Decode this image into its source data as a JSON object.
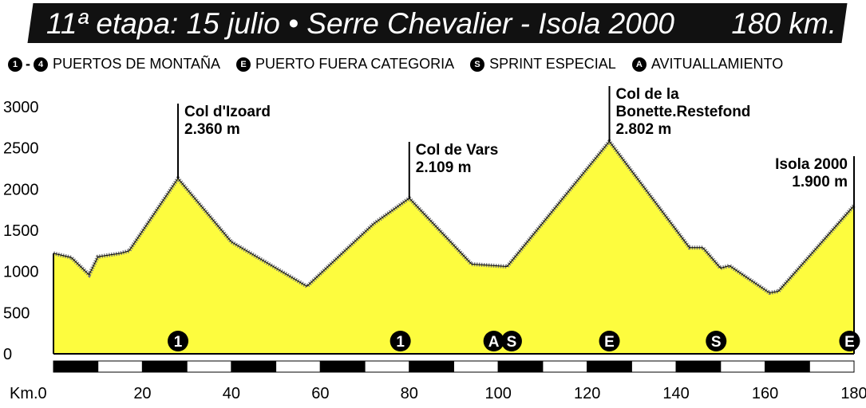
{
  "banner": {
    "stage": "11ª etapa: 15 julio • Serre Chevalier - Isola 2000",
    "distance": "180 km."
  },
  "legend": [
    {
      "icon": "1",
      "icon2": "4",
      "label": "PUERTOS DE MONTAÑA"
    },
    {
      "icon": "E",
      "label": "PUERTO FUERA CATEGORIA"
    },
    {
      "icon": "S",
      "label": "SPRINT ESPECIAL"
    },
    {
      "icon": "A",
      "label": "AVITUALLAMIENTO"
    }
  ],
  "colors": {
    "fill": "#fdfc3e",
    "stroke": "#7a7a7a",
    "ink": "#000000"
  },
  "chart_data": {
    "type": "area",
    "xlabel": "Km.0",
    "xticks": [
      20,
      40,
      60,
      80,
      100,
      120,
      140,
      160,
      180
    ],
    "xlim": [
      0,
      180
    ],
    "yticks": [
      0,
      500,
      1000,
      1500,
      2000,
      2500,
      3000
    ],
    "ylim": [
      0,
      3000
    ],
    "profile": [
      [
        0,
        1220
      ],
      [
        4,
        1170
      ],
      [
        8,
        960
      ],
      [
        10,
        1180
      ],
      [
        15,
        1220
      ],
      [
        17,
        1250
      ],
      [
        28,
        2130
      ],
      [
        40,
        1360
      ],
      [
        57,
        820
      ],
      [
        72,
        1580
      ],
      [
        80,
        1890
      ],
      [
        94,
        1090
      ],
      [
        102,
        1060
      ],
      [
        125,
        2580
      ],
      [
        143,
        1290
      ],
      [
        146,
        1290
      ],
      [
        150,
        1040
      ],
      [
        152,
        1070
      ],
      [
        161,
        740
      ],
      [
        163,
        760
      ],
      [
        180,
        1800
      ]
    ],
    "peaks": [
      {
        "km": 28,
        "elev": 2130,
        "name": "Col d'Izoard",
        "alt": "2.360 m"
      },
      {
        "km": 80,
        "elev": 1890,
        "name": "Col de Vars",
        "alt": "2.109 m"
      },
      {
        "km": 125,
        "elev": 2580,
        "name": "Col de la",
        "name2": "Bonette.Restefond",
        "alt": "2.802 m"
      },
      {
        "km": 180,
        "elev": 1800,
        "name": "Isola 2000",
        "alt": "1.900 m"
      }
    ],
    "markers": [
      {
        "km": 28,
        "label": "1"
      },
      {
        "km": 78,
        "label": "1"
      },
      {
        "km": 99,
        "label": "A"
      },
      {
        "km": 103,
        "label": "S"
      },
      {
        "km": 125,
        "label": "E"
      },
      {
        "km": 149,
        "label": "S"
      },
      {
        "km": 179,
        "label": "E"
      }
    ]
  }
}
